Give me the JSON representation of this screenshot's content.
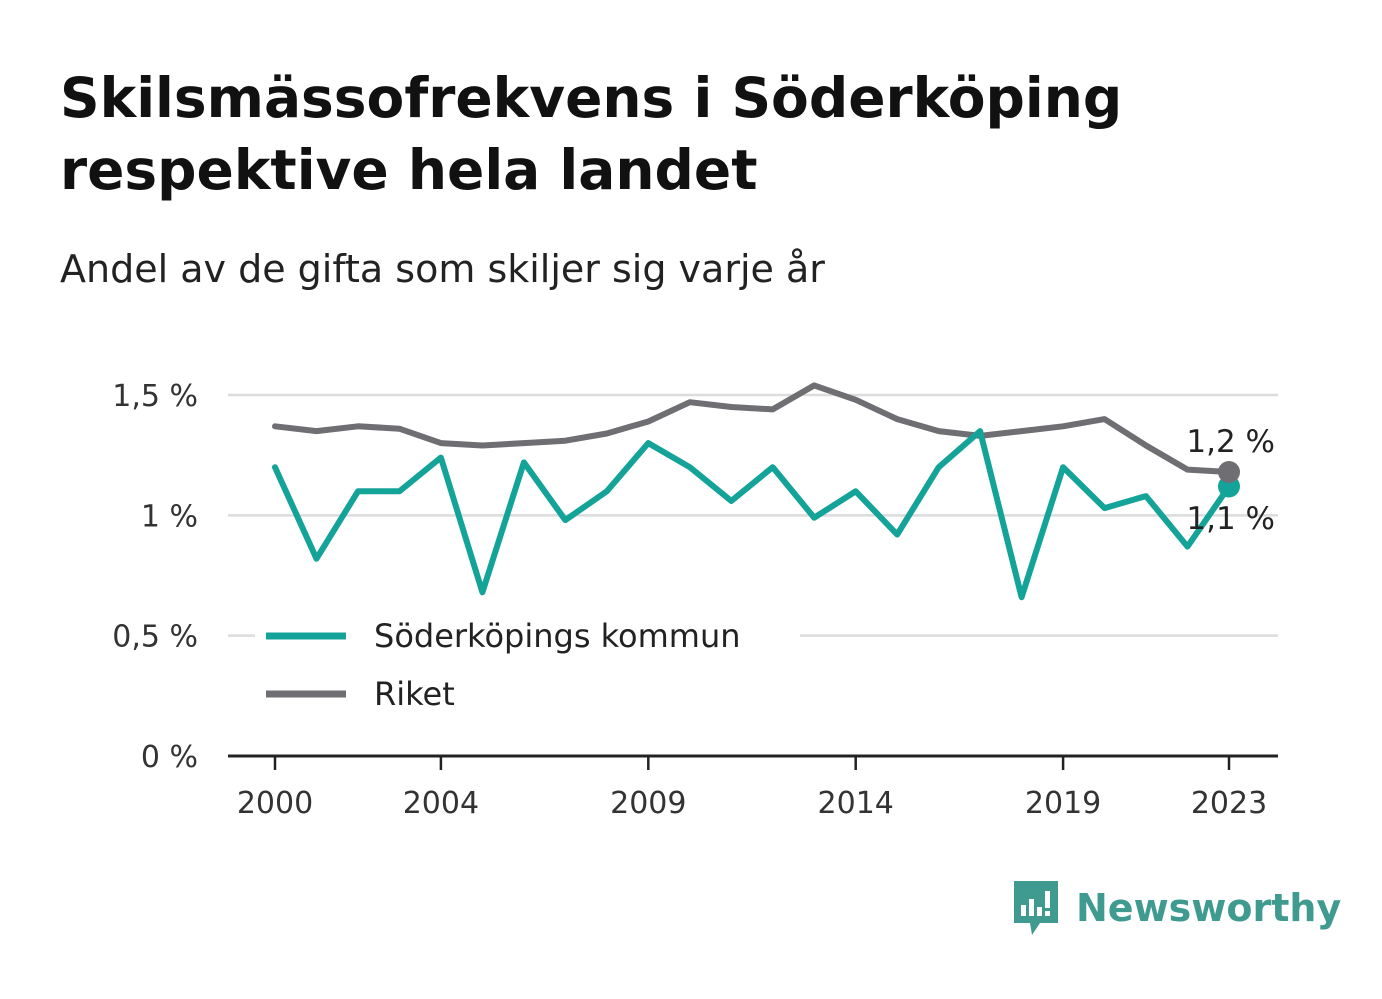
{
  "header": {
    "title_line1": "Skilsmässofrekvens i Söderköping",
    "title_line2": "respektive hela landet",
    "subtitle": "Andel av de gifta som skiljer sig varje år"
  },
  "brand": {
    "name": "Newsworthy",
    "color": "#3f9b8f"
  },
  "chart_data": {
    "type": "line",
    "x": [
      2000,
      2001,
      2002,
      2003,
      2004,
      2005,
      2006,
      2007,
      2008,
      2009,
      2010,
      2011,
      2012,
      2013,
      2014,
      2015,
      2016,
      2017,
      2018,
      2019,
      2020,
      2021,
      2022,
      2023
    ],
    "x_tick_labels": [
      "2000",
      "2004",
      "2009",
      "2014",
      "2019",
      "2023"
    ],
    "x_tick_values": [
      2000,
      2004,
      2009,
      2014,
      2019,
      2023
    ],
    "y_tick_labels": [
      "0 %",
      "0,5 %",
      "1 %",
      "1,5 %"
    ],
    "y_tick_values": [
      0,
      0.5,
      1,
      1.5
    ],
    "ylim": [
      0,
      1.5
    ],
    "grid": true,
    "legend_position": "bottom-left",
    "series": [
      {
        "name": "Söderköpings kommun",
        "color": "#14a398",
        "values": [
          1.2,
          0.82,
          1.1,
          1.1,
          1.24,
          0.68,
          1.22,
          0.98,
          1.1,
          1.3,
          1.2,
          1.06,
          1.2,
          0.99,
          1.1,
          0.92,
          1.2,
          1.35,
          0.66,
          1.2,
          1.03,
          1.08,
          0.87,
          1.12
        ],
        "end_label": "1,1 %"
      },
      {
        "name": "Riket",
        "color": "#6e6e73",
        "values": [
          1.37,
          1.35,
          1.37,
          1.36,
          1.3,
          1.29,
          1.3,
          1.31,
          1.34,
          1.39,
          1.47,
          1.45,
          1.44,
          1.54,
          1.48,
          1.4,
          1.35,
          1.33,
          1.35,
          1.37,
          1.4,
          1.29,
          1.19,
          1.18
        ],
        "end_label": "1,2 %"
      }
    ]
  }
}
